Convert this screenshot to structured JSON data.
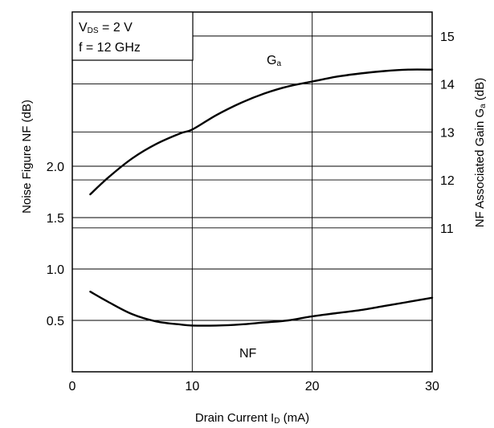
{
  "chart_data": {
    "type": "line",
    "xlabel": {
      "main": "Drain Current  I",
      "sub": "D",
      "unit": " (mA)"
    },
    "ylabel_left": {
      "main": "Noise Figure  NF (dB)"
    },
    "ylabel_right": {
      "main": "NF Associated Gain  G",
      "sub": "a",
      "unit": " (dB)"
    },
    "x_ticks": [
      "0",
      "10",
      "20",
      "30"
    ],
    "x_tick_values": [
      0,
      10,
      20,
      30
    ],
    "xlim": [
      0,
      30
    ],
    "y_left_ticks": [
      "0.5",
      "1.0",
      "1.5",
      "2.0"
    ],
    "y_left_tick_values": [
      0.5,
      1.0,
      1.5,
      2.0
    ],
    "y_left_lim": [
      0,
      3.5
    ],
    "y_right_ticks": [
      "11",
      "12",
      "13",
      "14",
      "15"
    ],
    "y_right_tick_values": [
      11,
      12,
      13,
      14,
      15
    ],
    "y_right_lim": [
      8,
      15.5
    ],
    "conditions": {
      "line1": {
        "main": "V",
        "sub": "DS",
        "rest": " = 2 V"
      },
      "line2": "f = 12 GHz"
    },
    "grid": true,
    "series": [
      {
        "name": "NF",
        "axis": "left",
        "label": "NF",
        "x": [
          1.5,
          3,
          5,
          7,
          9,
          10,
          12,
          14,
          16,
          18,
          20,
          22,
          24,
          26,
          28,
          30
        ],
        "y": [
          0.78,
          0.68,
          0.56,
          0.49,
          0.46,
          0.45,
          0.45,
          0.46,
          0.48,
          0.5,
          0.54,
          0.57,
          0.6,
          0.64,
          0.68,
          0.72
        ]
      },
      {
        "name": "Ga",
        "axis": "right",
        "label": {
          "main": "G",
          "sub": "a"
        },
        "x": [
          1.5,
          3,
          5,
          7,
          9,
          10,
          12,
          14,
          16,
          18,
          20,
          22,
          24,
          26,
          28,
          30
        ],
        "y": [
          11.7,
          12.05,
          12.45,
          12.75,
          12.97,
          13.05,
          13.35,
          13.6,
          13.8,
          13.95,
          14.05,
          14.15,
          14.22,
          14.27,
          14.3,
          14.3
        ]
      }
    ]
  }
}
